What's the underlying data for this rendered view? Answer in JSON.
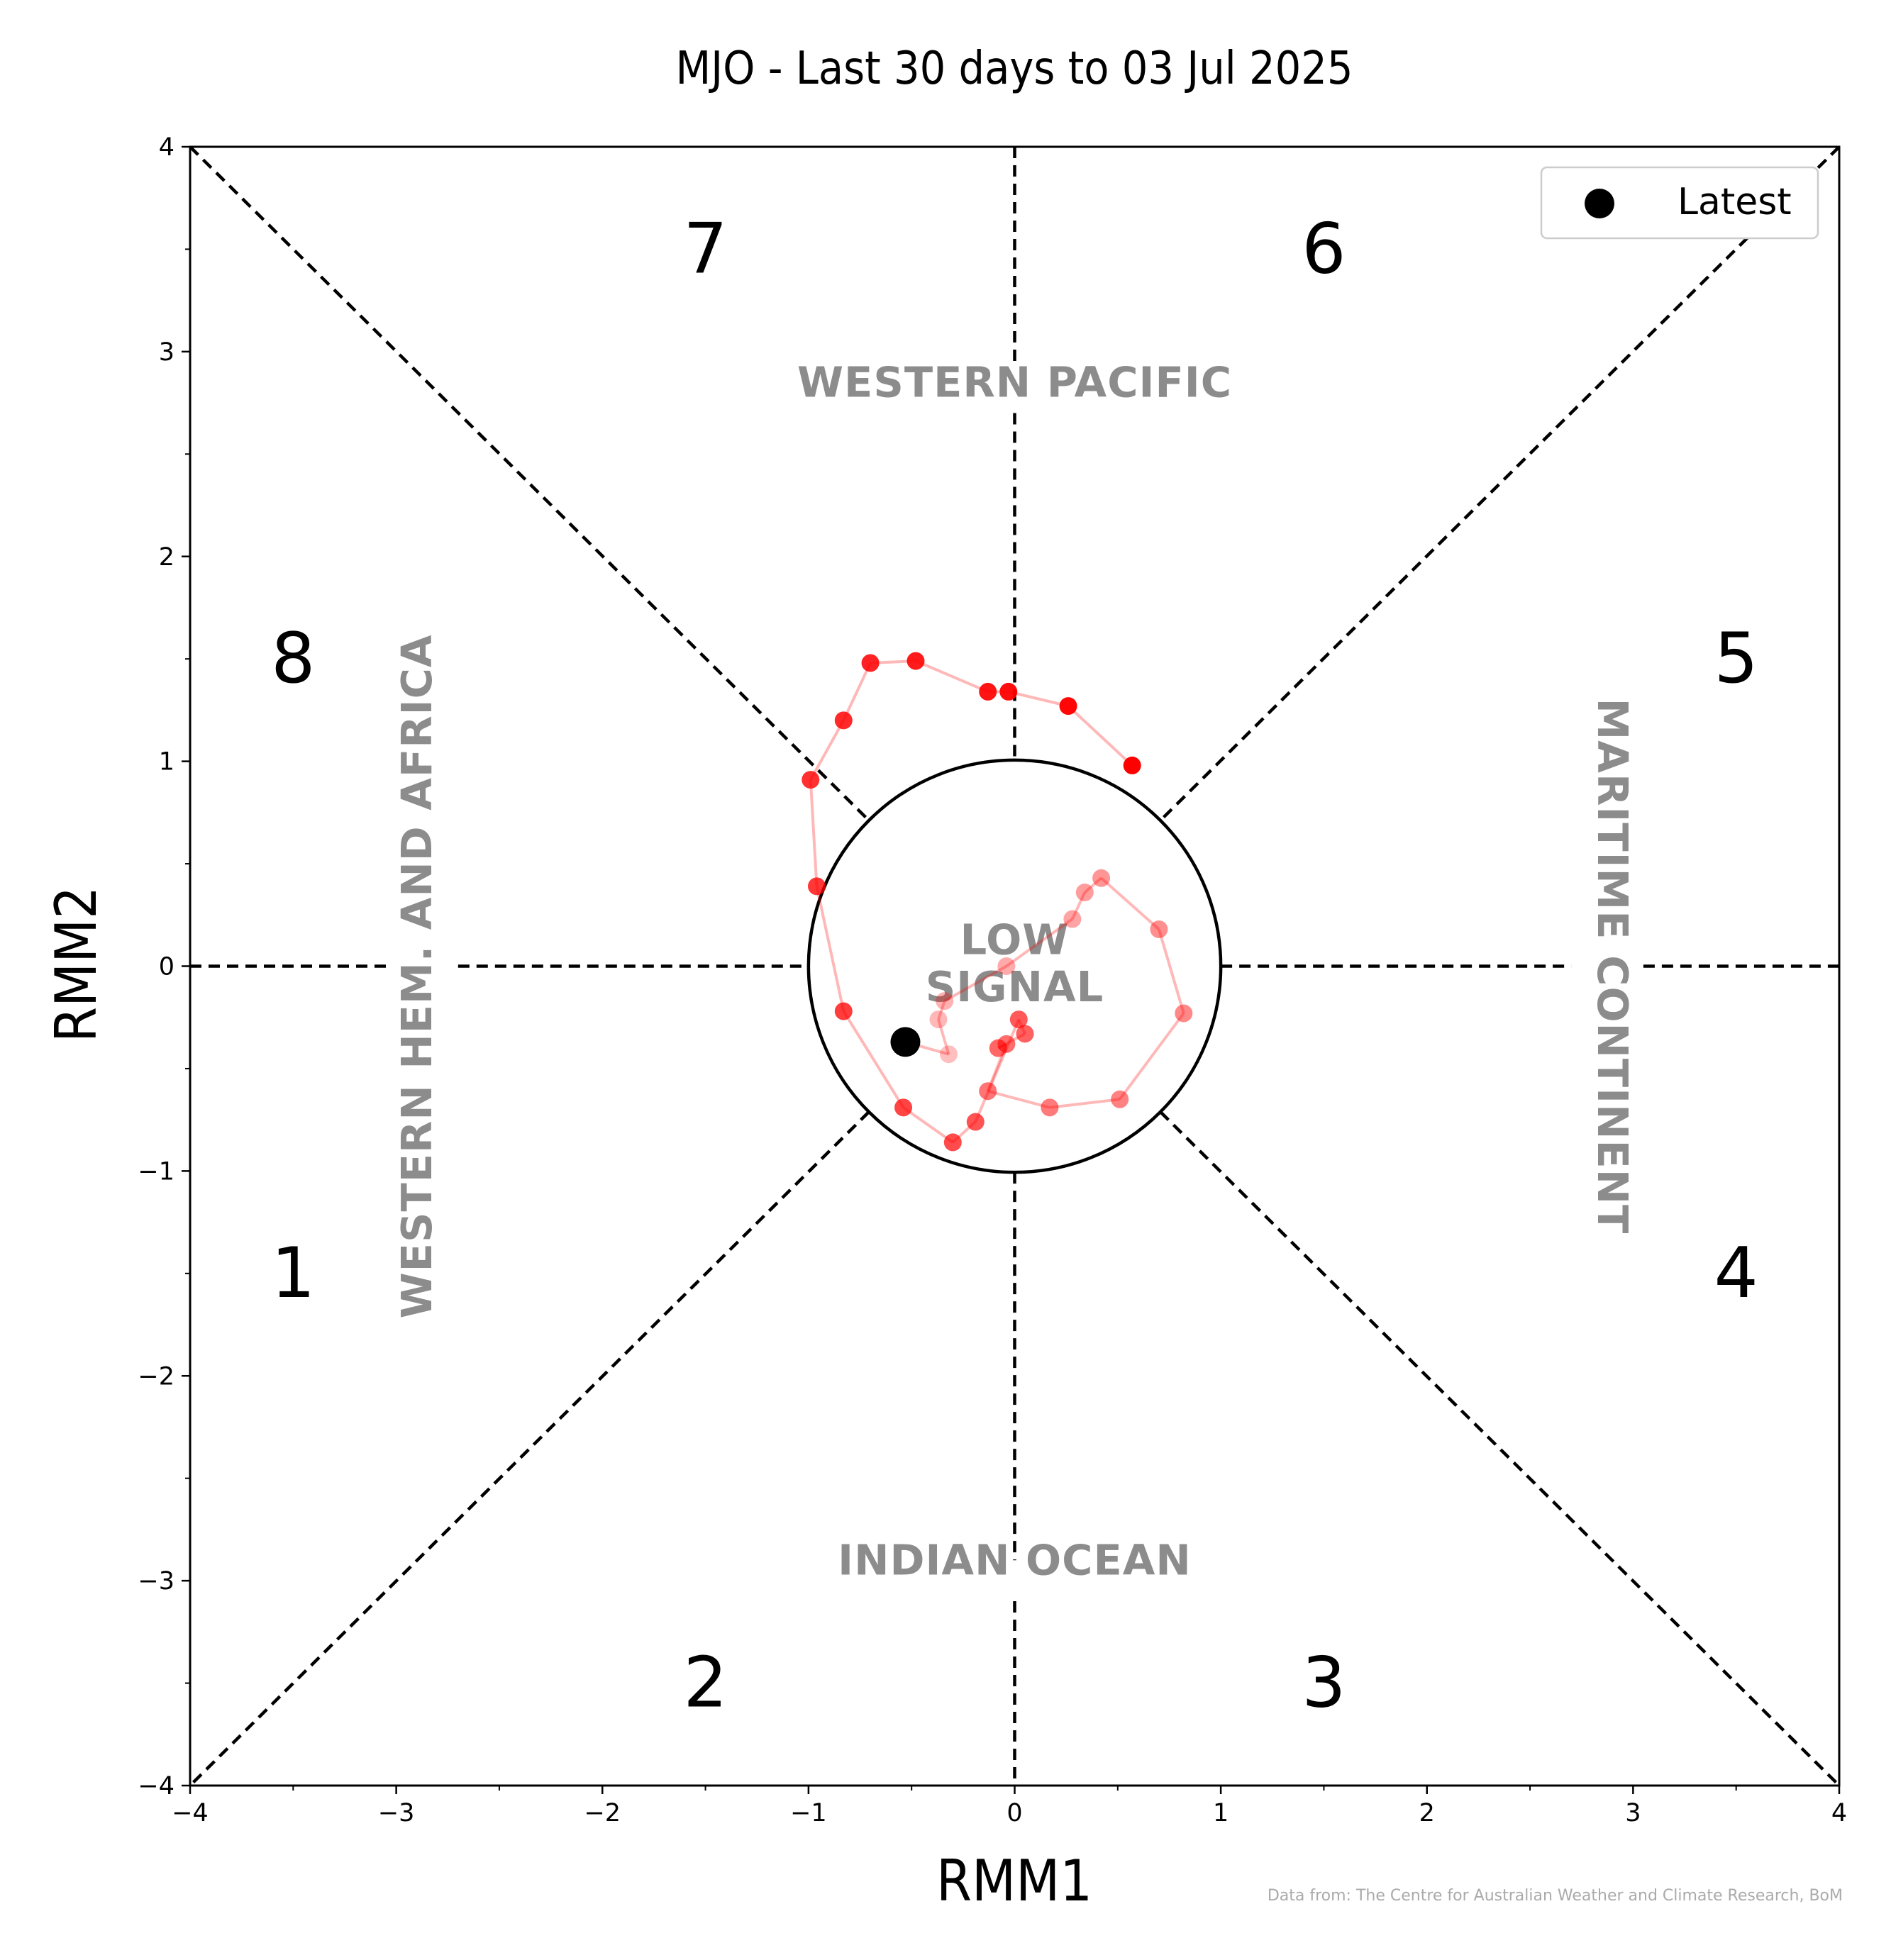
{
  "chart_data": {
    "type": "scatter",
    "title": "MJO - Last 30 days to 03 Jul 2025",
    "xlabel": "RMM1",
    "ylabel": "RMM2",
    "xlim": [
      -4,
      4
    ],
    "ylim": [
      -4,
      4
    ],
    "xticks": [
      -4,
      -3,
      -2,
      -1,
      0,
      1,
      2,
      3,
      4
    ],
    "yticks": [
      -4,
      -3,
      -2,
      -1,
      0,
      1,
      2,
      3,
      4
    ],
    "xtick_labels": [
      "−4",
      "−3",
      "−2",
      "−1",
      "0",
      "1",
      "2",
      "3",
      "4"
    ],
    "ytick_labels": [
      "−4",
      "−3",
      "−2",
      "−1",
      "0",
      "1",
      "2",
      "3",
      "4"
    ],
    "grid": false,
    "low_signal_radius": 1,
    "phase_labels": [
      {
        "label": "1",
        "x": -3.5,
        "y": -1.5
      },
      {
        "label": "2",
        "x": -1.5,
        "y": -3.5
      },
      {
        "label": "3",
        "x": 1.5,
        "y": -3.5
      },
      {
        "label": "4",
        "x": 3.5,
        "y": -1.5
      },
      {
        "label": "5",
        "x": 3.5,
        "y": 1.5
      },
      {
        "label": "6",
        "x": 1.5,
        "y": 3.5
      },
      {
        "label": "7",
        "x": -1.5,
        "y": 3.5
      },
      {
        "label": "8",
        "x": -3.5,
        "y": 1.5
      }
    ],
    "region_labels": {
      "top": "WESTERN PACIFIC",
      "bottom": "INDIAN OCEAN",
      "left": "WESTERN HEM. AND AFRICA",
      "right": "MARITIME CONTINENT",
      "center_line1": "LOW",
      "center_line2": "SIGNAL"
    },
    "legend": {
      "label": "Latest",
      "position": "top-right"
    },
    "series": [
      {
        "color": "#ff0000",
        "points": [
          {
            "x": -0.32,
            "y": -0.43
          },
          {
            "x": -0.37,
            "y": -0.26
          },
          {
            "x": -0.34,
            "y": -0.17
          },
          {
            "x": -0.04,
            "y": 0.0
          },
          {
            "x": 0.28,
            "y": 0.23
          },
          {
            "x": 0.34,
            "y": 0.36
          },
          {
            "x": 0.42,
            "y": 0.43
          },
          {
            "x": 0.7,
            "y": 0.18
          },
          {
            "x": 0.82,
            "y": -0.23
          },
          {
            "x": 0.51,
            "y": -0.65
          },
          {
            "x": 0.17,
            "y": -0.69
          },
          {
            "x": -0.13,
            "y": -0.61
          },
          {
            "x": -0.04,
            "y": -0.38
          },
          {
            "x": -0.08,
            "y": -0.4
          },
          {
            "x": 0.05,
            "y": -0.33
          },
          {
            "x": 0.02,
            "y": -0.26
          },
          {
            "x": -0.19,
            "y": -0.76
          },
          {
            "x": -0.3,
            "y": -0.86
          },
          {
            "x": -0.54,
            "y": -0.69
          },
          {
            "x": -0.83,
            "y": -0.22
          },
          {
            "x": -0.96,
            "y": 0.39
          },
          {
            "x": -0.99,
            "y": 0.91
          },
          {
            "x": -0.83,
            "y": 1.2
          },
          {
            "x": -0.7,
            "y": 1.48
          },
          {
            "x": -0.48,
            "y": 1.49
          },
          {
            "x": -0.13,
            "y": 1.34
          },
          {
            "x": -0.03,
            "y": 1.34
          },
          {
            "x": 0.26,
            "y": 1.27
          },
          {
            "x": 0.57,
            "y": 0.98
          }
        ]
      }
    ],
    "latest": {
      "x": -0.53,
      "y": -0.37,
      "color": "#000000"
    }
  },
  "source_note": "Data from: The Centre for Australian Weather and Climate Research, BoM"
}
